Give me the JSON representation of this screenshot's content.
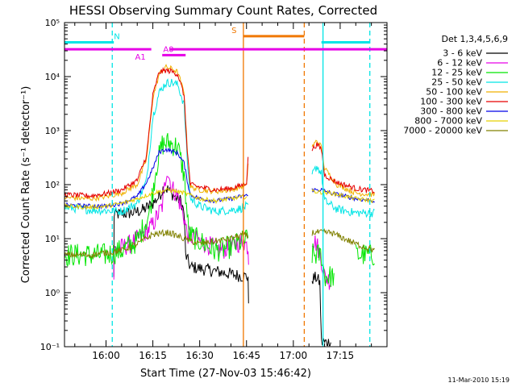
{
  "chart_data": {
    "type": "line",
    "title": "HESSI Observing Summary Count Rates, Corrected",
    "xlabel": "Start Time (27-Nov-03 15:46:42)",
    "ylabel": "Corrected Count Rate (s⁻¹ detector⁻¹)",
    "x_ticks": [
      "16:00",
      "16:15",
      "16:30",
      "16:45",
      "17:00",
      "17:15"
    ],
    "x_range": [
      "15:46:42",
      "17:30:00"
    ],
    "y_scale": "log",
    "y_ticks": [
      "10⁻¹",
      "10⁰",
      "10¹",
      "10²",
      "10³",
      "10⁴",
      "10⁵"
    ],
    "ylim": [
      0.1,
      100000
    ],
    "footer_date": "11-Mar-2010 15:19",
    "legend_title": "Det 1,3,4,5,6,9",
    "legend_position": "right",
    "flags": [
      {
        "label": "N",
        "color": "#00e5e5",
        "level": 43000,
        "style": "thick",
        "segments": [
          [
            "15:46:42",
            "16:02:30"
          ],
          [
            "17:09:00",
            "17:24:30"
          ]
        ],
        "label_at": "16:03:30"
      },
      {
        "label": "A1",
        "color": "#e600e6",
        "level": 32000,
        "style": "thick",
        "segments": [
          [
            "15:46:42",
            "16:14:30"
          ],
          [
            "16:20:30",
            "17:30:00"
          ]
        ],
        "label_at": "16:11:00",
        "label_below": true
      },
      {
        "label": "A0",
        "color": "#e600e6",
        "level": 25000,
        "style": "thick",
        "segments": [
          [
            "16:18:00",
            "16:25:30"
          ]
        ],
        "label_at": "16:20:00"
      },
      {
        "label": "S",
        "color": "#f07800",
        "level": 56000,
        "style": "thick",
        "segments": [
          [
            "16:44:00",
            "17:03:30"
          ]
        ],
        "label_at": "16:41:00"
      }
    ],
    "vlines": [
      {
        "time": "16:02:00",
        "color": "#00e5e5",
        "dash": true
      },
      {
        "time": "17:24:30",
        "color": "#00e5e5",
        "dash": true
      },
      {
        "time": "17:09:30",
        "color": "#00e5e5",
        "dash": false
      },
      {
        "time": "16:44:00",
        "color": "#f07800",
        "dash": false
      },
      {
        "time": "17:03:30",
        "color": "#f07800",
        "dash": true
      }
    ],
    "series": [
      {
        "name": "3 - 6 keV",
        "color": "#000000",
        "noise": 0.12,
        "points": [
          [
            "16:02:30",
            1.8
          ],
          [
            "16:02:35",
            28
          ],
          [
            "16:08:00",
            30
          ],
          [
            "16:12:00",
            34
          ],
          [
            "16:15:00",
            45
          ],
          [
            "16:17:00",
            60
          ],
          [
            "16:18:30",
            90
          ],
          [
            "16:20:00",
            80
          ],
          [
            "16:22:00",
            60
          ],
          [
            "16:24:00",
            50
          ],
          [
            "16:25:00",
            30
          ],
          [
            "16:25:30",
            5
          ],
          [
            "16:27:00",
            3
          ],
          [
            "16:35:00",
            2.5
          ],
          [
            "16:44:00",
            2
          ],
          [
            "16:45:30",
            2
          ],
          [
            "16:45:40",
            0.5
          ]
        ],
        "points2": [
          [
            "17:06:00",
            1.8
          ],
          [
            "17:07:30",
            1.9
          ],
          [
            "17:08:30",
            1.5
          ],
          [
            "17:09:00",
            0.12
          ],
          [
            "17:12:00",
            0.12
          ]
        ]
      },
      {
        "name": "6 - 12 keV",
        "color": "#e600e6",
        "noise": 0.18,
        "points": [
          [
            "16:02:30",
            1.8
          ],
          [
            "16:02:35",
            6
          ],
          [
            "16:08:00",
            8
          ],
          [
            "16:12:00",
            12
          ],
          [
            "16:15:00",
            18
          ],
          [
            "16:18:00",
            40
          ],
          [
            "16:19:30",
            200
          ],
          [
            "16:21:00",
            90
          ],
          [
            "16:23:00",
            60
          ],
          [
            "16:25:00",
            25
          ],
          [
            "16:26:00",
            12
          ],
          [
            "16:30:00",
            9
          ],
          [
            "16:37:00",
            6
          ],
          [
            "16:42:00",
            8
          ],
          [
            "16:44:00",
            9
          ],
          [
            "16:45:30",
            7
          ],
          [
            "16:45:40",
            4
          ]
        ],
        "points2": [
          [
            "17:06:00",
            10
          ],
          [
            "17:07:30",
            8
          ],
          [
            "17:09:00",
            4
          ],
          [
            "17:10:00",
            2
          ],
          [
            "17:12:00",
            1.6
          ]
        ]
      },
      {
        "name": "12 - 25 keV",
        "color": "#00e600",
        "noise": 0.22,
        "points": [
          [
            "15:46:42",
            5
          ],
          [
            "15:55:00",
            5
          ],
          [
            "16:00:00",
            5
          ],
          [
            "16:05:00",
            6
          ],
          [
            "16:10:00",
            9
          ],
          [
            "16:14:00",
            30
          ],
          [
            "16:16:00",
            200
          ],
          [
            "16:18:00",
            550
          ],
          [
            "16:20:00",
            600
          ],
          [
            "16:23:00",
            500
          ],
          [
            "16:25:00",
            150
          ],
          [
            "16:26:30",
            12
          ],
          [
            "16:30:00",
            9
          ],
          [
            "16:35:00",
            6
          ],
          [
            "16:40:00",
            7
          ],
          [
            "16:44:00",
            9
          ],
          [
            "16:45:30",
            10
          ]
        ],
        "points2": [
          [
            "17:06:00",
            5
          ],
          [
            "17:09:00",
            5
          ],
          [
            "17:10:00",
            2
          ],
          [
            "17:13:00",
            2
          ]
        ],
        "points3": [
          [
            "17:20:00",
            5
          ],
          [
            "17:24:00",
            5
          ],
          [
            "17:26:00",
            5
          ]
        ]
      },
      {
        "name": "25 - 50 keV",
        "color": "#00e5e5",
        "noise": 0.08,
        "points": [
          [
            "15:46:42",
            38
          ],
          [
            "15:55:00",
            34
          ],
          [
            "16:00:00",
            33
          ],
          [
            "16:05:00",
            32
          ],
          [
            "16:10:00",
            45
          ],
          [
            "16:13:00",
            120
          ],
          [
            "16:15:00",
            1800
          ],
          [
            "16:17:00",
            5000
          ],
          [
            "16:19:00",
            7500
          ],
          [
            "16:21:00",
            7800
          ],
          [
            "16:23:00",
            7000
          ],
          [
            "16:25:00",
            3000
          ],
          [
            "16:26:00",
            300
          ],
          [
            "16:27:00",
            55
          ],
          [
            "16:30:00",
            40
          ],
          [
            "16:35:00",
            32
          ],
          [
            "16:40:00",
            34
          ],
          [
            "16:43:00",
            36
          ],
          [
            "16:45:00",
            40
          ],
          [
            "16:45:30",
            36
          ]
        ],
        "points2": [
          [
            "17:06:00",
            150
          ],
          [
            "17:07:30",
            220
          ],
          [
            "17:09:00",
            160
          ],
          [
            "17:10:00",
            50
          ],
          [
            "17:14:00",
            35
          ],
          [
            "17:20:00",
            30
          ],
          [
            "17:26:00",
            30
          ]
        ]
      },
      {
        "name": "50 - 100 keV",
        "color": "#f0b000",
        "noise": 0.05,
        "points": [
          [
            "15:46:42",
            58
          ],
          [
            "15:55:00",
            55
          ],
          [
            "16:00:00",
            60
          ],
          [
            "16:05:00",
            70
          ],
          [
            "16:10:00",
            100
          ],
          [
            "16:13:00",
            300
          ],
          [
            "16:15:00",
            4000
          ],
          [
            "16:17:00",
            11000
          ],
          [
            "16:19:00",
            15000
          ],
          [
            "16:21:00",
            14000
          ],
          [
            "16:23:00",
            12000
          ],
          [
            "16:25:00",
            5000
          ],
          [
            "16:26:00",
            500
          ],
          [
            "16:27:00",
            90
          ],
          [
            "16:30:00",
            80
          ],
          [
            "16:35:00",
            75
          ],
          [
            "16:40:00",
            80
          ],
          [
            "16:43:00",
            90
          ],
          [
            "16:45:00",
            95
          ],
          [
            "16:45:30",
            250
          ]
        ],
        "points2": [
          [
            "17:06:00",
            500
          ],
          [
            "17:07:30",
            650
          ],
          [
            "17:09:00",
            500
          ],
          [
            "17:10:00",
            200
          ],
          [
            "17:14:00",
            100
          ],
          [
            "17:20:00",
            70
          ],
          [
            "17:26:00",
            65
          ]
        ]
      },
      {
        "name": "100 - 300 keV",
        "color": "#e60000",
        "noise": 0.05,
        "points": [
          [
            "15:46:42",
            65
          ],
          [
            "15:55:00",
            62
          ],
          [
            "16:00:00",
            68
          ],
          [
            "16:05:00",
            80
          ],
          [
            "16:10:00",
            120
          ],
          [
            "16:13:00",
            350
          ],
          [
            "16:15:00",
            4500
          ],
          [
            "16:17:00",
            12000
          ],
          [
            "16:19:00",
            13000
          ],
          [
            "16:21:00",
            12500
          ],
          [
            "16:23:00",
            11000
          ],
          [
            "16:25:00",
            4500
          ],
          [
            "16:26:00",
            450
          ],
          [
            "16:27:00",
            100
          ],
          [
            "16:30:00",
            90
          ],
          [
            "16:35:00",
            80
          ],
          [
            "16:40:00",
            85
          ],
          [
            "16:43:00",
            95
          ],
          [
            "16:45:00",
            110
          ],
          [
            "16:45:30",
            300
          ]
        ],
        "points2": [
          [
            "17:06:00",
            450
          ],
          [
            "17:07:30",
            550
          ],
          [
            "17:09:00",
            450
          ],
          [
            "17:10:00",
            150
          ],
          [
            "17:14:00",
            110
          ],
          [
            "17:20:00",
            85
          ],
          [
            "17:26:00",
            75
          ]
        ]
      },
      {
        "name": "300 - 800 keV",
        "color": "#0000e6",
        "noise": 0.04,
        "points": [
          [
            "15:46:42",
            42
          ],
          [
            "15:55:00",
            40
          ],
          [
            "16:00:00",
            40
          ],
          [
            "16:05:00",
            45
          ],
          [
            "16:10:00",
            60
          ],
          [
            "16:13:00",
            110
          ],
          [
            "16:15:00",
            200
          ],
          [
            "16:17:00",
            400
          ],
          [
            "16:19:00",
            450
          ],
          [
            "16:21:00",
            420
          ],
          [
            "16:23:00",
            380
          ],
          [
            "16:25:00",
            250
          ],
          [
            "16:26:00",
            120
          ],
          [
            "16:27:00",
            65
          ],
          [
            "16:30:00",
            55
          ],
          [
            "16:35:00",
            50
          ],
          [
            "16:40:00",
            55
          ],
          [
            "16:43:00",
            60
          ],
          [
            "16:45:00",
            65
          ],
          [
            "16:45:30",
            60
          ]
        ],
        "points2": [
          [
            "17:06:00",
            80
          ],
          [
            "17:09:00",
            80
          ],
          [
            "17:12:00",
            70
          ],
          [
            "17:20:00",
            55
          ],
          [
            "17:26:00",
            50
          ]
        ]
      },
      {
        "name": "800 - 7000 keV",
        "color": "#e6d000",
        "noise": 0.04,
        "points": [
          [
            "15:46:42",
            40
          ],
          [
            "15:55:00",
            38
          ],
          [
            "16:00:00",
            40
          ],
          [
            "16:05:00",
            45
          ],
          [
            "16:10:00",
            55
          ],
          [
            "16:15:00",
            70
          ],
          [
            "16:20:00",
            80
          ],
          [
            "16:25:00",
            70
          ],
          [
            "16:30:00",
            55
          ],
          [
            "16:35:00",
            50
          ],
          [
            "16:40:00",
            55
          ],
          [
            "16:45:00",
            60
          ]
        ],
        "points2": [
          [
            "17:06:00",
            75
          ],
          [
            "17:12:00",
            70
          ],
          [
            "17:20:00",
            55
          ],
          [
            "17:26:00",
            50
          ]
        ]
      },
      {
        "name": "7000 - 20000 keV",
        "color": "#808000",
        "noise": 0.06,
        "points": [
          [
            "15:46:42",
            5
          ],
          [
            "15:55:00",
            5
          ],
          [
            "16:00:00",
            5.5
          ],
          [
            "16:05:00",
            6
          ],
          [
            "16:10:00",
            8
          ],
          [
            "16:15:00",
            12
          ],
          [
            "16:20:00",
            13
          ],
          [
            "16:25:00",
            10
          ],
          [
            "16:30:00",
            8
          ],
          [
            "16:35:00",
            9
          ],
          [
            "16:40:00",
            10
          ],
          [
            "16:44:00",
            12
          ],
          [
            "16:45:30",
            11
          ]
        ],
        "points2": [
          [
            "17:06:00",
            13
          ],
          [
            "17:12:00",
            13
          ],
          [
            "17:20:00",
            8
          ],
          [
            "17:26:00",
            6
          ]
        ]
      }
    ]
  }
}
